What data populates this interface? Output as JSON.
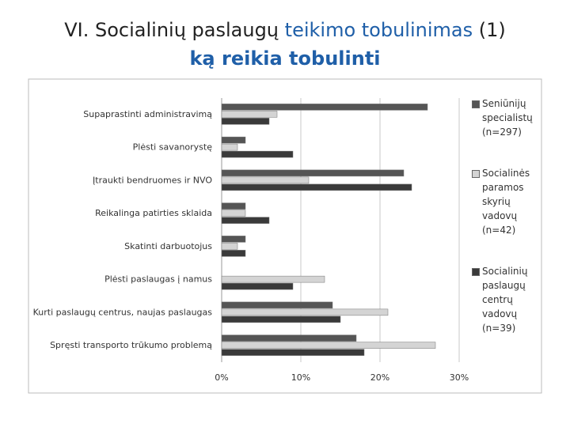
{
  "slide": {
    "title_segments": [
      "VI. Socialinių paslaugų",
      "teikimo tobulinimas",
      "(1)"
    ],
    "subtitle": "ką reikia tobulinti"
  },
  "chart_data": {
    "type": "hbar",
    "categories": [
      "Supaprastinti administravimą",
      "Plėsti savanorystę",
      "Įtraukti bendruomes ir NVO",
      "Reikalinga patirties sklaida",
      "Skatinti darbuotojus",
      "Plėsti paslaugas į namus",
      "Kurti paslaugų centrus, naujas paslaugas",
      "Spręsti transporto trūkumo problemą"
    ],
    "series": [
      {
        "name": "Seniūnijų specialistų (n=297)",
        "color": "#555555",
        "values": [
          26,
          3,
          23,
          3,
          3,
          0,
          14,
          17
        ]
      },
      {
        "name": "Socialinės paramos skyrių vadovų (n=42)",
        "color": "#d4d4d4",
        "values": [
          7,
          2,
          11,
          3,
          2,
          13,
          21,
          27
        ]
      },
      {
        "name": "Socialinių paslaugų centrų vadovų (n=39)",
        "color": "#3a3a3a",
        "values": [
          6,
          9,
          24,
          6,
          3,
          9,
          15,
          18
        ]
      }
    ],
    "xlim": [
      0,
      30
    ],
    "xticks": [
      {
        "value": 0,
        "label": "0%"
      },
      {
        "value": 10,
        "label": "10%"
      },
      {
        "value": 20,
        "label": "20%"
      },
      {
        "value": 30,
        "label": "30%"
      }
    ],
    "grid": true
  }
}
